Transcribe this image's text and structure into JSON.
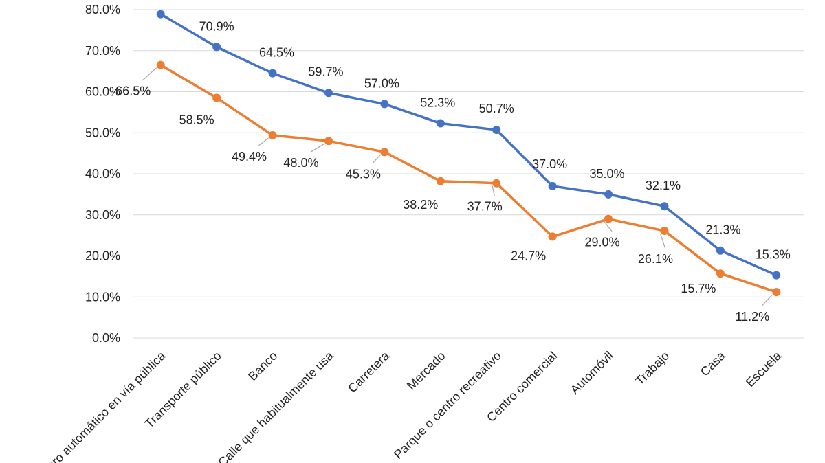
{
  "chart_data": {
    "type": "line",
    "categories": [
      "Cajero automático en vía pública",
      "Transporte público",
      "Banco",
      "Calle que habitualmente usa",
      "Carretera",
      "Mercado",
      "Parque o centro recreativo",
      "Centro comercial",
      "Automóvil",
      "Trabajo",
      "Casa",
      "Escuela"
    ],
    "series": [
      {
        "color": "#4472C4",
        "values": [
          78.9,
          70.9,
          64.5,
          59.7,
          57.0,
          52.3,
          50.7,
          37.0,
          35.0,
          32.1,
          21.3,
          15.3
        ],
        "labels": [
          "",
          "70.9%",
          "64.5%",
          "59.7%",
          "57.0%",
          "52.3%",
          "50.7%",
          "37.0%",
          "35.0%",
          "32.1%",
          "21.3%",
          "15.3%"
        ]
      },
      {
        "color": "#ED7D31",
        "values": [
          66.5,
          58.5,
          49.4,
          48.0,
          45.3,
          38.2,
          37.7,
          24.7,
          29.0,
          26.1,
          15.7,
          11.2
        ],
        "labels": [
          "66.5%",
          "58.5%",
          "49.4%",
          "48.0%",
          "45.3%",
          "38.2%",
          "37.7%",
          "24.7%",
          "29.0%",
          "26.1%",
          "15.7%",
          "11.2%"
        ]
      }
    ],
    "yticks": [
      "0.0%",
      "10.0%",
      "20.0%",
      "30.0%",
      "40.0%",
      "50.0%",
      "60.0%",
      "70.0%",
      "80.0%"
    ],
    "ylim": [
      0,
      80
    ],
    "grid": true,
    "gridColor": "#d9d9d9"
  }
}
